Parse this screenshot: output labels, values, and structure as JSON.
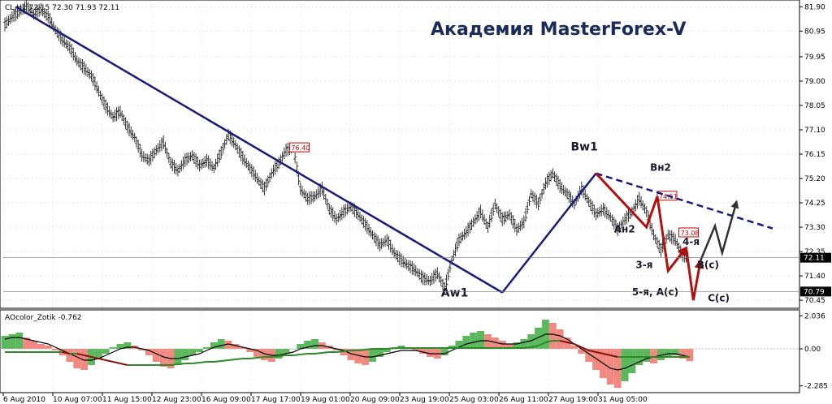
{
  "chart_data": {
    "type": "line",
    "symbol_info": "CL,H1  72.15 72.30 71.93 72.11",
    "watermark": "Академия MasterForex-V",
    "price_axis": {
      "ticks": [
        "81.90",
        "80.95",
        "79.95",
        "79.00",
        "78.05",
        "77.10",
        "76.15",
        "75.20",
        "74.25",
        "73.30",
        "72.35",
        "71.40",
        "70.45"
      ],
      "range": [
        70.2,
        82.1
      ]
    },
    "x_ticks": [
      "6 Aug 2010",
      "10 Aug 07:00",
      "11 Aug 15:00",
      "12 Aug 23:00",
      "16 Aug 09:00",
      "17 Aug 17:00",
      "19 Aug 01:00",
      "20 Aug 09:00",
      "23 Aug 19:00",
      "25 Aug 03:00",
      "26 Aug 11:00",
      "27 Aug 19:00",
      "31 Aug 05:00"
    ],
    "price_series": {
      "name": "CL,H1",
      "x": [
        0,
        2,
        4,
        6,
        8,
        10,
        12,
        14,
        16,
        18,
        20,
        22,
        24,
        26,
        28,
        30,
        32,
        34,
        36,
        38,
        40,
        42,
        44,
        46,
        48,
        50,
        52,
        54,
        56,
        58,
        60,
        62,
        64,
        66,
        68,
        70,
        72,
        74,
        76,
        78,
        80,
        82,
        84,
        86,
        88,
        90,
        92,
        94,
        96,
        98,
        100,
        102,
        104,
        106,
        108,
        110,
        112,
        114,
        116,
        118,
        120,
        122,
        124,
        126,
        128,
        130,
        132,
        134,
        136,
        138,
        140,
        142,
        144,
        146,
        148,
        150,
        152,
        154,
        156,
        158,
        160,
        162,
        164,
        166,
        168,
        170,
        172,
        174,
        176,
        178,
        180,
        182,
        184,
        186,
        188,
        190
      ],
      "values": [
        81.2,
        81.5,
        81.7,
        81.9,
        81.6,
        81.8,
        81.5,
        81.0,
        80.6,
        80.3,
        79.8,
        79.5,
        79.2,
        78.6,
        78.0,
        77.6,
        77.8,
        77.2,
        76.8,
        76.1,
        75.9,
        76.3,
        76.6,
        75.8,
        75.5,
        75.9,
        76.1,
        75.7,
        75.9,
        75.6,
        76.2,
        76.9,
        76.5,
        76.0,
        75.6,
        75.2,
        74.8,
        75.4,
        75.8,
        76.3,
        76.4,
        74.8,
        74.4,
        74.5,
        74.8,
        74.0,
        73.6,
        73.9,
        74.1,
        73.8,
        73.4,
        73.0,
        72.6,
        72.8,
        72.3,
        72.0,
        71.8,
        71.6,
        71.3,
        71.2,
        71.5,
        70.9,
        72.0,
        72.8,
        73.1,
        73.5,
        73.9,
        73.3,
        74.2,
        73.6,
        73.8,
        73.2,
        73.5,
        74.6,
        74.2,
        75.0,
        75.4,
        74.9,
        74.6,
        74.2,
        74.8,
        74.3,
        73.8,
        74.0,
        73.7,
        73.2,
        73.6,
        73.9,
        74.4,
        73.9,
        73.0,
        72.4,
        73.0,
        72.8,
        72.2,
        72.11
      ]
    },
    "price_labels": [
      {
        "text": "76.40",
        "x": 79,
        "y": 76.4,
        "color": "#cc0000"
      },
      {
        "text": "74.51",
        "x": 181,
        "y": 74.51,
        "color": "#cc0000"
      },
      {
        "text": "73.08",
        "x": 187,
        "y": 73.08,
        "color": "#cc0000"
      }
    ],
    "axis_markers": [
      {
        "text": "72.11",
        "value": 72.11,
        "bg": "#000000",
        "fg": "#ffffff"
      },
      {
        "text": "70.79",
        "value": 70.79,
        "bg": "#000000",
        "fg": "#ffffff"
      }
    ],
    "wave_lines": [
      {
        "name": "Aw1-down",
        "color": "#1a1a7a",
        "points": [
          [
            3,
            81.9
          ],
          [
            138,
            70.75
          ]
        ]
      },
      {
        "name": "Bw1-up",
        "color": "#1a1a7a",
        "points": [
          [
            138,
            70.75
          ],
          [
            164,
            75.4
          ]
        ]
      }
    ],
    "trend_line": {
      "color": "#1a1a7a",
      "dashed": true,
      "points": [
        [
          164,
          75.4
        ],
        [
          213,
          73.25
        ]
      ]
    },
    "red_paths": [
      {
        "points": [
          [
            164,
            75.4
          ],
          [
            178,
            73.3
          ],
          [
            181,
            74.5
          ],
          [
            184,
            71.6
          ],
          [
            189,
            72.5
          ]
        ]
      },
      {
        "points": [
          [
            189,
            72.5
          ],
          [
            191,
            70.45
          ],
          [
            193,
            72.0
          ]
        ]
      }
    ],
    "grey_paths": [
      {
        "points": [
          [
            193,
            72.0
          ],
          [
            197,
            73.35
          ],
          [
            199,
            72.3
          ],
          [
            203,
            74.3
          ]
        ]
      }
    ],
    "wave_labels": [
      {
        "text": "Aw1",
        "x": 121,
        "y": 70.6
      },
      {
        "text": "Bw1",
        "x": 157,
        "y": 76.3
      },
      {
        "text": "Вн2",
        "x": 179,
        "y": 75.5
      },
      {
        "text": "Ан2",
        "x": 169,
        "y": 73.1
      },
      {
        "text": "3-я",
        "x": 175,
        "y": 71.7
      },
      {
        "text": "4-я",
        "x": 188,
        "y": 72.6
      },
      {
        "text": "B(c)",
        "x": 192,
        "y": 71.7
      },
      {
        "text": "5-я, A(c)",
        "x": 174,
        "y": 70.65
      },
      {
        "text": "C(c)",
        "x": 195,
        "y": 70.4
      }
    ],
    "indicator": {
      "name": "AOcolor_Zotik -0.762",
      "ticks": [
        "2.036",
        "0.00",
        "-2.285"
      ],
      "range": [
        -2.6,
        2.3
      ],
      "histogram": [
        0.8,
        0.9,
        1.0,
        0.7,
        0.5,
        0.3,
        0.2,
        -0.1,
        -0.4,
        -0.8,
        -1.2,
        -1.3,
        -1.0,
        -0.6,
        -0.3,
        0.1,
        0.3,
        0.4,
        0.2,
        -0.1,
        -0.4,
        -0.8,
        -1.1,
        -1.2,
        -1.0,
        -0.7,
        -0.4,
        -0.2,
        0.1,
        0.4,
        0.6,
        0.5,
        0.3,
        0.1,
        -0.2,
        -0.5,
        -0.7,
        -0.8,
        -0.6,
        -0.3,
        0.0,
        0.3,
        0.5,
        0.6,
        0.4,
        0.2,
        -0.1,
        -0.4,
        -0.7,
        -0.9,
        -1.0,
        -0.8,
        -0.5,
        -0.2,
        0.0,
        0.2,
        0.1,
        -0.1,
        -0.3,
        -0.5,
        -0.6,
        -0.4,
        0.2,
        0.5,
        0.8,
        1.0,
        1.1,
        0.9,
        0.7,
        0.5,
        0.3,
        0.4,
        0.6,
        0.9,
        1.3,
        1.8,
        1.6,
        1.2,
        0.7,
        0.2,
        -0.3,
        -0.8,
        -1.3,
        -1.8,
        -2.2,
        -2.4,
        -2.0,
        -1.5,
        -1.0,
        -0.8,
        -0.9,
        -0.7,
        -0.5,
        -0.4,
        -0.6,
        -0.762
      ],
      "signal_black": [
        0.6,
        0.7,
        0.7,
        0.6,
        0.5,
        0.4,
        0.3,
        0.1,
        -0.1,
        -0.3,
        -0.5,
        -0.7,
        -0.7,
        -0.6,
        -0.4,
        -0.2,
        0.0,
        0.1,
        0.1,
        0.0,
        -0.1,
        -0.3,
        -0.5,
        -0.6,
        -0.6,
        -0.5,
        -0.4,
        -0.3,
        -0.1,
        0.1,
        0.2,
        0.3,
        0.2,
        0.1,
        0.0,
        -0.1,
        -0.3,
        -0.4,
        -0.4,
        -0.3,
        -0.2,
        0.0,
        0.1,
        0.2,
        0.2,
        0.1,
        0.0,
        -0.1,
        -0.3,
        -0.4,
        -0.5,
        -0.5,
        -0.4,
        -0.3,
        -0.2,
        -0.1,
        -0.1,
        -0.1,
        -0.2,
        -0.3,
        -0.3,
        -0.3,
        -0.1,
        0.1,
        0.3,
        0.4,
        0.5,
        0.5,
        0.4,
        0.3,
        0.3,
        0.3,
        0.4,
        0.5,
        0.7,
        0.9,
        0.9,
        0.8,
        0.6,
        0.3,
        0.0,
        -0.3,
        -0.6,
        -0.9,
        -1.2,
        -1.3,
        -1.2,
        -1.0,
        -0.8,
        -0.6,
        -0.5,
        -0.4,
        -0.3,
        -0.3,
        -0.4,
        -0.5
      ],
      "signal_green_red": [
        -0.2,
        -0.2,
        -0.2,
        -0.2,
        -0.2,
        -0.2,
        -0.2,
        -0.2,
        -0.2,
        -0.3,
        -0.3,
        -0.4,
        -0.5,
        -0.6,
        -0.7,
        -0.8,
        -0.9,
        -1.0,
        -1.0,
        -1.0,
        -1.0,
        -1.0,
        -1.0,
        -1.0,
        -0.95,
        -0.9,
        -0.9,
        -0.85,
        -0.8,
        -0.8,
        -0.75,
        -0.7,
        -0.65,
        -0.6,
        -0.6,
        -0.55,
        -0.5,
        -0.5,
        -0.45,
        -0.4,
        -0.4,
        -0.35,
        -0.3,
        -0.3,
        -0.25,
        -0.2,
        -0.2,
        -0.15,
        -0.1,
        -0.1,
        -0.05,
        0.0,
        0.0,
        0.0,
        0.05,
        0.05,
        0.05,
        0.05,
        0.05,
        0.05,
        0.05,
        0.05,
        0.05,
        0.05,
        0.05,
        0.05,
        0.05,
        0.05,
        0.05,
        0.05,
        0.05,
        0.05,
        0.05,
        0.1,
        0.2,
        0.4,
        0.5,
        0.5,
        0.4,
        0.3,
        0.1,
        -0.1,
        -0.2,
        -0.3,
        -0.4,
        -0.5,
        -0.5,
        -0.5,
        -0.5,
        -0.5,
        -0.5,
        -0.5,
        -0.5,
        -0.5,
        -0.5,
        -0.5
      ]
    },
    "colors": {
      "bars": "#303030",
      "hist_up": "#5cb85c",
      "hist_down": "#f08a80",
      "waves": "#1a1a7a",
      "red_arrows": "#b01010",
      "grey_arrows": "#303030"
    }
  }
}
